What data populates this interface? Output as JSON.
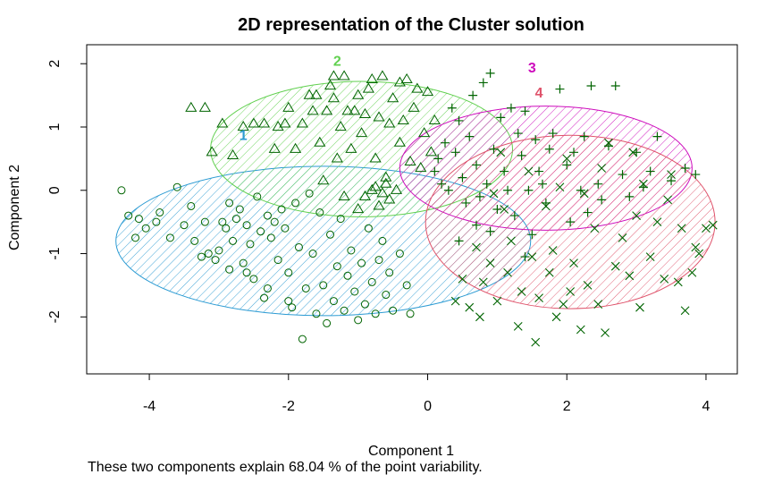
{
  "chart_data": {
    "type": "scatter",
    "title": "2D representation of the Cluster solution",
    "xlabel": "Component 1",
    "ylabel": "Component 2",
    "xlim": [
      -4.9,
      4.45
    ],
    "ylim": [
      -2.9,
      2.3
    ],
    "xticks": [
      -4,
      -2,
      0,
      2,
      4
    ],
    "yticks": [
      -2,
      -1,
      0,
      1,
      2
    ],
    "xtick_labels": [
      "-4",
      "-2",
      "0",
      "2",
      "4"
    ],
    "ytick_labels": [
      "-2",
      "-1",
      "0",
      "1",
      "2"
    ],
    "caption": "These two components explain 68.04 % of the point variability.",
    "point_color": "#006400",
    "clusters": [
      {
        "label": "1",
        "marker": "circle",
        "color": "#2c9bd3",
        "ellipse": {
          "cx": -1.5,
          "cy": -0.8,
          "rx": 2.98,
          "ry": 1.18
        },
        "label_pos": [
          -2.65,
          0.88
        ],
        "points": [
          [
            -4.4,
            0.0
          ],
          [
            -4.3,
            -0.4
          ],
          [
            -4.2,
            -0.75
          ],
          [
            -4.15,
            -0.45
          ],
          [
            -4.05,
            -0.6
          ],
          [
            -3.9,
            -0.5
          ],
          [
            -3.85,
            -0.35
          ],
          [
            -3.7,
            -0.75
          ],
          [
            -3.6,
            0.05
          ],
          [
            -3.5,
            -0.55
          ],
          [
            -3.4,
            -0.25
          ],
          [
            -3.35,
            -0.8
          ],
          [
            -3.25,
            -1.05
          ],
          [
            -3.15,
            -1.0
          ],
          [
            -3.05,
            -1.1
          ],
          [
            -2.95,
            -0.5
          ],
          [
            -2.9,
            -0.6
          ],
          [
            -2.85,
            -0.2
          ],
          [
            -2.8,
            -0.8
          ],
          [
            -2.75,
            -0.45
          ],
          [
            -2.7,
            -0.3
          ],
          [
            -2.65,
            -1.15
          ],
          [
            -2.6,
            -0.55
          ],
          [
            -2.55,
            -0.85
          ],
          [
            -2.5,
            -1.4
          ],
          [
            -2.45,
            -0.1
          ],
          [
            -2.4,
            -0.65
          ],
          [
            -2.35,
            -1.7
          ],
          [
            -2.3,
            -0.4
          ],
          [
            -2.25,
            -0.75
          ],
          [
            -2.2,
            -0.5
          ],
          [
            -2.15,
            -1.1
          ],
          [
            -2.1,
            -0.3
          ],
          [
            -2.05,
            -0.6
          ],
          [
            -2.0,
            -1.3
          ],
          [
            -1.95,
            -1.85
          ],
          [
            -1.9,
            -0.2
          ],
          [
            -1.85,
            -0.9
          ],
          [
            -1.8,
            -2.35
          ],
          [
            -1.75,
            -1.55
          ],
          [
            -1.7,
            -0.05
          ],
          [
            -1.65,
            -1.0
          ],
          [
            -1.6,
            -1.95
          ],
          [
            -1.55,
            -0.35
          ],
          [
            -1.5,
            -1.5
          ],
          [
            -1.45,
            -2.1
          ],
          [
            -1.4,
            -0.7
          ],
          [
            -1.35,
            -1.75
          ],
          [
            -1.3,
            -1.2
          ],
          [
            -1.25,
            -0.45
          ],
          [
            -1.2,
            -1.9
          ],
          [
            -1.15,
            -1.35
          ],
          [
            -1.1,
            -0.95
          ],
          [
            -1.05,
            -1.6
          ],
          [
            -1.0,
            -2.05
          ],
          [
            -0.95,
            -1.15
          ],
          [
            -0.9,
            -1.8
          ],
          [
            -0.85,
            -0.6
          ],
          [
            -0.8,
            -1.45
          ],
          [
            -0.75,
            -1.95
          ],
          [
            -0.7,
            -1.1
          ],
          [
            -0.65,
            -0.8
          ],
          [
            -0.6,
            -1.65
          ],
          [
            -0.55,
            -1.3
          ],
          [
            -0.5,
            -1.9
          ],
          [
            -0.4,
            -1.0
          ],
          [
            -0.3,
            -1.5
          ],
          [
            -0.25,
            -1.95
          ],
          [
            -3.2,
            -0.5
          ],
          [
            -3.0,
            -0.95
          ],
          [
            -2.85,
            -1.25
          ],
          [
            -2.6,
            -1.3
          ],
          [
            -2.3,
            -1.55
          ],
          [
            -2.0,
            -1.75
          ]
        ]
      },
      {
        "label": "2",
        "marker": "triangle",
        "color": "#61d04f",
        "ellipse": {
          "cx": -0.95,
          "cy": 0.65,
          "rx": 2.17,
          "ry": 1.07
        },
        "label_pos": [
          -1.3,
          2.05
        ],
        "points": [
          [
            -3.4,
            1.3
          ],
          [
            -3.2,
            1.3
          ],
          [
            -3.1,
            0.6
          ],
          [
            -2.95,
            1.05
          ],
          [
            -2.8,
            0.55
          ],
          [
            -2.65,
            1.0
          ],
          [
            -2.5,
            1.05
          ],
          [
            -2.35,
            1.05
          ],
          [
            -2.2,
            0.65
          ],
          [
            -2.15,
            1.0
          ],
          [
            -2.05,
            1.05
          ],
          [
            -2.0,
            1.3
          ],
          [
            -1.9,
            0.65
          ],
          [
            -1.8,
            1.05
          ],
          [
            -1.7,
            1.5
          ],
          [
            -1.65,
            1.25
          ],
          [
            -1.55,
            0.75
          ],
          [
            -1.45,
            1.25
          ],
          [
            -1.4,
            1.65
          ],
          [
            -1.35,
            1.8
          ],
          [
            -1.3,
            0.5
          ],
          [
            -1.25,
            1.0
          ],
          [
            -1.2,
            1.8
          ],
          [
            -1.1,
            0.65
          ],
          [
            -1.05,
            1.25
          ],
          [
            -1.0,
            1.5
          ],
          [
            -0.95,
            0.9
          ],
          [
            -0.9,
            1.2
          ],
          [
            -0.85,
            1.6
          ],
          [
            -0.8,
            1.75
          ],
          [
            -0.75,
            0.5
          ],
          [
            -0.7,
            1.15
          ],
          [
            -0.65,
            1.8
          ],
          [
            -0.6,
            0.2
          ],
          [
            -0.55,
            1.05
          ],
          [
            -0.5,
            1.45
          ],
          [
            -0.45,
            0.0
          ],
          [
            -0.4,
            0.75
          ],
          [
            -0.35,
            1.1
          ],
          [
            -0.3,
            1.75
          ],
          [
            -0.25,
            0.45
          ],
          [
            -0.2,
            1.3
          ],
          [
            -0.15,
            1.6
          ],
          [
            -0.1,
            0.35
          ],
          [
            -0.05,
            0.9
          ],
          [
            0.0,
            1.55
          ],
          [
            0.05,
            0.6
          ],
          [
            0.1,
            1.1
          ],
          [
            -1.5,
            0.15
          ],
          [
            -1.2,
            -0.1
          ],
          [
            -1.0,
            -0.3
          ],
          [
            -0.8,
            0.0
          ],
          [
            -0.7,
            -0.25
          ],
          [
            -0.6,
            0.1
          ],
          [
            -0.55,
            -0.15
          ],
          [
            -0.65,
            -0.05
          ],
          [
            -0.75,
            0.05
          ],
          [
            -0.9,
            -0.1
          ],
          [
            -1.6,
            1.5
          ],
          [
            -1.35,
            1.45
          ],
          [
            -1.15,
            1.25
          ],
          [
            -0.4,
            1.7
          ]
        ]
      },
      {
        "label": "3",
        "marker": "plus",
        "color": "#cd0bbc",
        "ellipse": {
          "cx": 1.7,
          "cy": 0.35,
          "rx": 2.1,
          "ry": 0.98
        },
        "label_pos": [
          1.5,
          1.95
        ],
        "points": [
          [
            0.1,
            0.3
          ],
          [
            0.15,
            0.5
          ],
          [
            0.2,
            0.1
          ],
          [
            0.25,
            0.75
          ],
          [
            0.3,
            0.0
          ],
          [
            0.35,
            1.3
          ],
          [
            0.4,
            0.6
          ],
          [
            0.45,
            1.1
          ],
          [
            0.5,
            0.2
          ],
          [
            0.55,
            -0.2
          ],
          [
            0.6,
            0.85
          ],
          [
            0.65,
            1.5
          ],
          [
            0.7,
            0.4
          ],
          [
            0.75,
            -0.1
          ],
          [
            0.8,
            1.7
          ],
          [
            0.85,
            0.1
          ],
          [
            0.9,
            1.85
          ],
          [
            0.95,
            0.65
          ],
          [
            1.0,
            -0.3
          ],
          [
            1.05,
            1.15
          ],
          [
            1.1,
            0.3
          ],
          [
            1.15,
            0.0
          ],
          [
            1.2,
            1.3
          ],
          [
            1.25,
            -0.4
          ],
          [
            1.3,
            0.9
          ],
          [
            1.35,
            0.55
          ],
          [
            1.4,
            1.25
          ],
          [
            1.45,
            0.0
          ],
          [
            1.5,
            -0.7
          ],
          [
            1.55,
            0.8
          ],
          [
            1.6,
            0.3
          ],
          [
            1.65,
            0.1
          ],
          [
            1.7,
            -0.2
          ],
          [
            1.75,
            0.65
          ],
          [
            1.8,
            0.9
          ],
          [
            1.9,
            1.6
          ],
          [
            2.0,
            0.4
          ],
          [
            2.05,
            -0.5
          ],
          [
            2.1,
            0.6
          ],
          [
            2.2,
            0.0
          ],
          [
            2.25,
            0.85
          ],
          [
            2.3,
            -0.35
          ],
          [
            2.35,
            1.65
          ],
          [
            2.45,
            0.1
          ],
          [
            2.5,
            -0.15
          ],
          [
            2.6,
            0.7
          ],
          [
            2.7,
            1.65
          ],
          [
            2.8,
            0.25
          ],
          [
            2.9,
            -0.1
          ],
          [
            3.0,
            0.6
          ],
          [
            3.1,
            0.05
          ],
          [
            3.2,
            0.3
          ],
          [
            3.3,
            0.85
          ],
          [
            3.5,
            0.15
          ],
          [
            3.7,
            0.35
          ],
          [
            3.85,
            0.25
          ],
          [
            0.45,
            -0.8
          ],
          [
            0.7,
            -0.55
          ],
          [
            0.9,
            -0.65
          ],
          [
            1.4,
            -1.05
          ]
        ]
      },
      {
        "label": "4",
        "marker": "x",
        "color": "#df536b",
        "ellipse": {
          "cx": 2.05,
          "cy": -0.5,
          "rx": 2.08,
          "ry": 1.37
        },
        "label_pos": [
          1.6,
          1.55
        ],
        "points": [
          [
            0.4,
            -1.75
          ],
          [
            0.5,
            -1.4
          ],
          [
            0.6,
            -1.85
          ],
          [
            0.7,
            -0.9
          ],
          [
            0.75,
            -2.0
          ],
          [
            0.8,
            -1.45
          ],
          [
            0.9,
            -1.15
          ],
          [
            0.95,
            -0.05
          ],
          [
            1.0,
            -1.75
          ],
          [
            1.05,
            0.6
          ],
          [
            1.15,
            -1.3
          ],
          [
            1.2,
            -0.8
          ],
          [
            1.3,
            -2.15
          ],
          [
            1.35,
            -1.6
          ],
          [
            1.45,
            0.3
          ],
          [
            1.5,
            -1.05
          ],
          [
            1.55,
            -2.4
          ],
          [
            1.6,
            -1.7
          ],
          [
            1.7,
            -0.25
          ],
          [
            1.75,
            -1.3
          ],
          [
            1.85,
            -2.0
          ],
          [
            1.9,
            0.05
          ],
          [
            1.95,
            -1.8
          ],
          [
            2.0,
            0.5
          ],
          [
            2.05,
            -1.6
          ],
          [
            2.1,
            -1.15
          ],
          [
            2.2,
            -2.2
          ],
          [
            2.25,
            -0.05
          ],
          [
            2.3,
            -1.5
          ],
          [
            2.4,
            -0.6
          ],
          [
            2.45,
            -1.8
          ],
          [
            2.5,
            0.35
          ],
          [
            2.55,
            -2.25
          ],
          [
            2.6,
            0.75
          ],
          [
            2.7,
            -1.2
          ],
          [
            2.8,
            -0.75
          ],
          [
            2.9,
            -1.35
          ],
          [
            2.95,
            0.6
          ],
          [
            3.0,
            -0.4
          ],
          [
            3.05,
            -1.85
          ],
          [
            3.1,
            0.1
          ],
          [
            3.2,
            -1.05
          ],
          [
            3.3,
            -0.5
          ],
          [
            3.4,
            -1.4
          ],
          [
            3.45,
            -0.15
          ],
          [
            3.5,
            0.25
          ],
          [
            3.6,
            -1.45
          ],
          [
            3.65,
            -0.6
          ],
          [
            3.7,
            -1.9
          ],
          [
            3.8,
            -1.3
          ],
          [
            3.85,
            -0.9
          ],
          [
            4.0,
            -0.6
          ],
          [
            4.1,
            -0.55
          ],
          [
            3.9,
            -1.0
          ],
          [
            1.1,
            -0.3
          ],
          [
            1.8,
            -0.95
          ]
        ]
      }
    ]
  }
}
